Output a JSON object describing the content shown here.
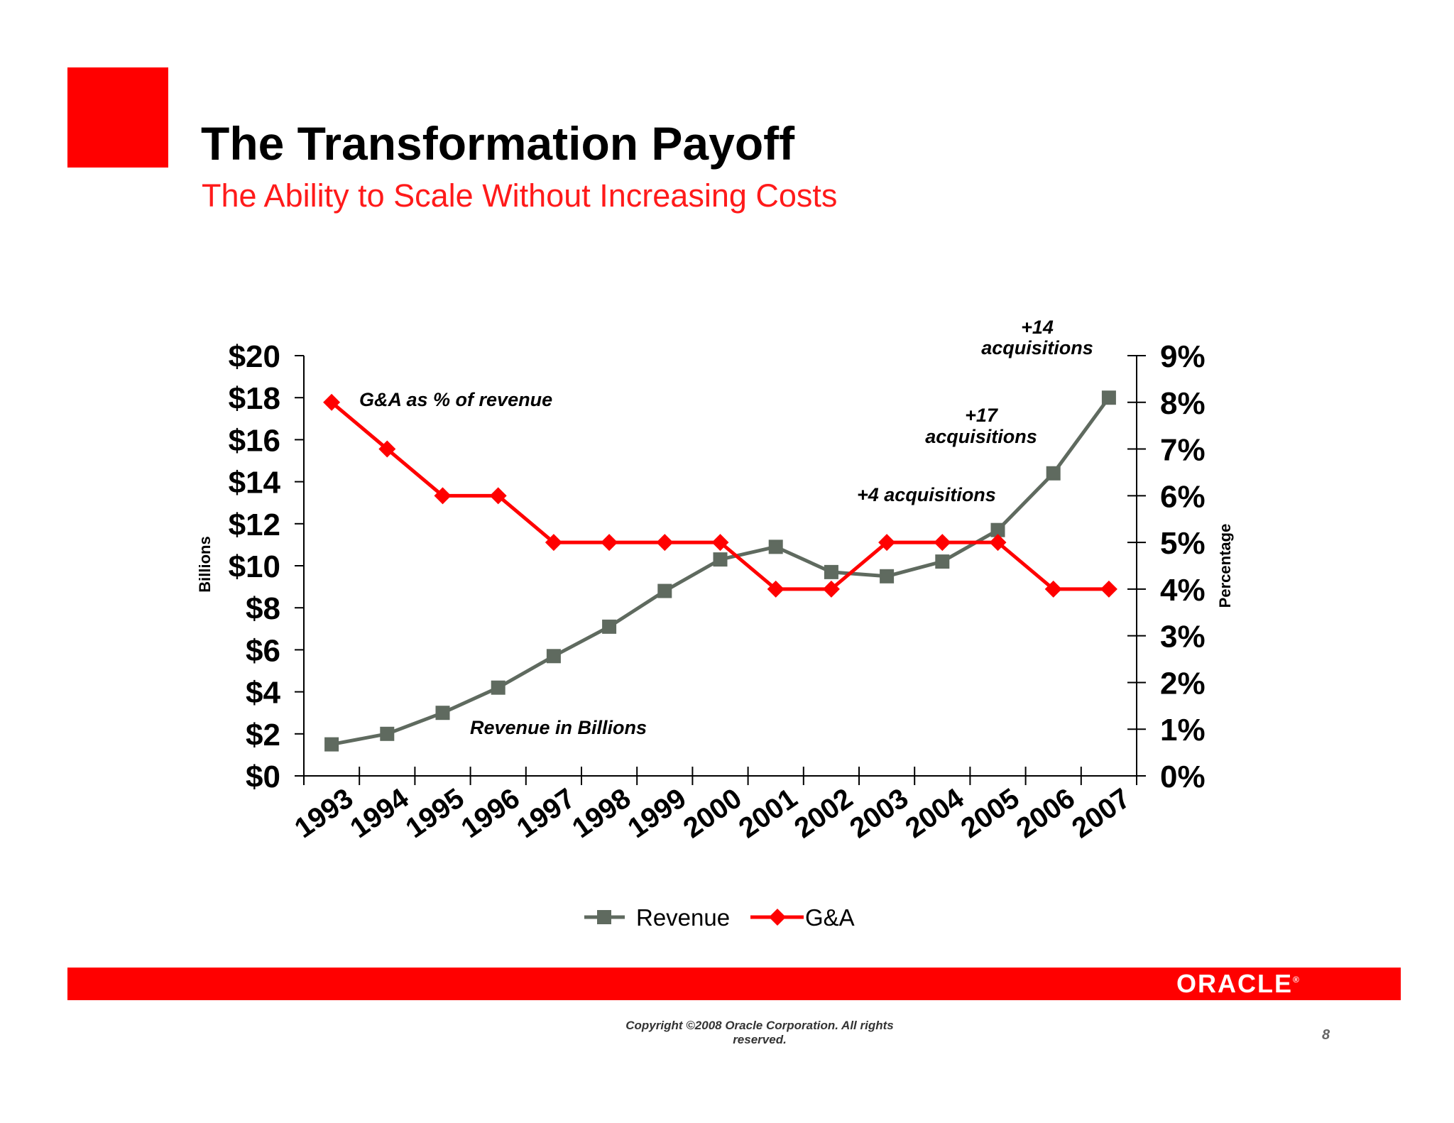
{
  "slide": {
    "title": "The Transformation Payoff",
    "subtitle": "The Ability to Scale Without Increasing Costs",
    "logo_text": "ORACLE",
    "logo_mark": "®",
    "copyright_line1": "Copyright ©2008 Oracle Corporation. All rights",
    "copyright_line2": "reserved.",
    "page_number": "8",
    "colors": {
      "accent_red": "#ff0000",
      "revenue_gray": "#5f6a5f",
      "ga_red": "#ff0000"
    }
  },
  "chart_data": {
    "type": "line",
    "x": [
      "1993",
      "1994",
      "1995",
      "1996",
      "1997",
      "1998",
      "1999",
      "2000",
      "2001",
      "2002",
      "2003",
      "2004",
      "2005",
      "2006",
      "2007"
    ],
    "series": [
      {
        "name": "Revenue",
        "axis": "left",
        "marker": "square",
        "color": "#5f6a5f",
        "values": [
          1.5,
          2.0,
          3.0,
          4.2,
          5.7,
          7.1,
          8.8,
          10.3,
          10.9,
          9.7,
          9.5,
          10.2,
          11.7,
          14.4,
          18.0
        ]
      },
      {
        "name": "G&A",
        "axis": "right",
        "marker": "diamond",
        "color": "#ff0000",
        "values": [
          8,
          7,
          6,
          6,
          5,
          5,
          5,
          5,
          4,
          4,
          5,
          5,
          5,
          4,
          4
        ]
      }
    ],
    "y_left": {
      "label": "Billions",
      "range": [
        0,
        20
      ],
      "ticks": [
        "$0",
        "$2",
        "$4",
        "$6",
        "$8",
        "$10",
        "$12",
        "$14",
        "$16",
        "$18",
        "$20"
      ]
    },
    "y_right": {
      "label": "Percentage",
      "range": [
        0,
        9
      ],
      "ticks": [
        "0%",
        "1%",
        "2%",
        "3%",
        "4%",
        "5%",
        "6%",
        "7%",
        "8%",
        "9%"
      ]
    },
    "annotations": [
      {
        "text": "G&A as % of revenue"
      },
      {
        "text": "Revenue in Billions"
      },
      {
        "text": "+4 acquisitions"
      },
      {
        "line1": "+17",
        "line2": "acquisitions"
      },
      {
        "line1": "+14",
        "line2": "acquisitions"
      }
    ],
    "legend_position": "bottom",
    "grid": false
  }
}
